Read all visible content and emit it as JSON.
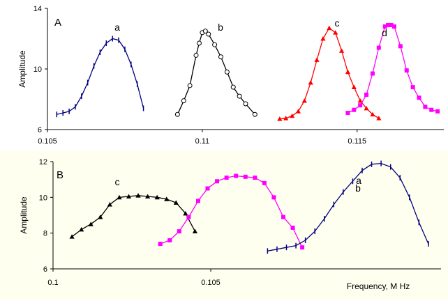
{
  "colors": {
    "panel_a_bg": "#ffffff",
    "panel_b_bg": "#fffff0",
    "a": "#000080",
    "b": "#000000",
    "c": "#ff0000",
    "d": "#ff00ff"
  },
  "chart_data": [
    {
      "type": "line",
      "panel_label": "A",
      "ylabel": "Amplitude",
      "xlabel": "",
      "xlim": [
        0.105,
        0.1178
      ],
      "ylim": [
        6,
        14
      ],
      "xticks": [
        "0.105",
        "0.11",
        "0.115"
      ],
      "yticks": [
        "6",
        "10",
        "14"
      ],
      "series": [
        {
          "name": "a",
          "color": "#000080",
          "marker": "dash",
          "x": [
            0.1053,
            0.1055,
            0.1057,
            0.1059,
            0.1061,
            0.1063,
            0.1065,
            0.1067,
            0.1069,
            0.1071,
            0.1073,
            0.1075,
            0.1077,
            0.1079,
            0.1081
          ],
          "y": [
            7.0,
            7.1,
            7.2,
            7.5,
            8.2,
            9.1,
            10.2,
            11.1,
            11.7,
            12.0,
            11.9,
            11.3,
            10.3,
            9.0,
            7.4
          ]
        },
        {
          "name": "b",
          "color": "#000000",
          "marker": "circle",
          "x": [
            0.1092,
            0.1094,
            0.1096,
            0.1098,
            0.1099,
            0.11,
            0.1101,
            0.1102,
            0.1104,
            0.1106,
            0.1108,
            0.111,
            0.1112,
            0.1114,
            0.1117
          ],
          "y": [
            7.0,
            7.9,
            8.9,
            10.9,
            11.7,
            12.4,
            12.5,
            12.3,
            11.6,
            10.8,
            9.8,
            8.8,
            8.2,
            7.7,
            7.0
          ]
        },
        {
          "name": "c",
          "color": "#ff0000",
          "marker": "triangle",
          "x": [
            0.1125,
            0.1127,
            0.1129,
            0.1131,
            0.1133,
            0.1135,
            0.1137,
            0.1139,
            0.1141,
            0.1143,
            0.1145,
            0.1147,
            0.1149,
            0.1151,
            0.1153,
            0.1155,
            0.1157
          ],
          "y": [
            6.7,
            6.75,
            6.9,
            7.2,
            7.9,
            9.1,
            10.6,
            12.0,
            12.7,
            12.4,
            11.2,
            9.8,
            8.8,
            7.9,
            7.4,
            7.0,
            6.75
          ]
        },
        {
          "name": "d",
          "color": "#ff00ff",
          "marker": "square",
          "x": [
            0.1147,
            0.1149,
            0.1151,
            0.1153,
            0.1155,
            0.1157,
            0.1159,
            0.116,
            0.1161,
            0.1162,
            0.1164,
            0.1166,
            0.1168,
            0.117,
            0.1172,
            0.1174,
            0.1176
          ],
          "y": [
            7.1,
            7.3,
            7.6,
            8.3,
            9.7,
            11.4,
            12.8,
            12.9,
            12.9,
            12.8,
            11.5,
            9.9,
            8.8,
            8.1,
            7.5,
            7.3,
            7.2
          ]
        }
      ]
    },
    {
      "type": "line",
      "panel_label": "B",
      "ylabel": "Amplitude",
      "xlabel": "Frequency,  M Hz",
      "xlim": [
        0.1,
        0.1123
      ],
      "ylim": [
        6,
        12
      ],
      "xticks": [
        "0.1",
        "0.105"
      ],
      "yticks": [
        "6",
        "8",
        "10",
        "12"
      ],
      "series": [
        {
          "name": "c",
          "color": "#000000",
          "marker": "triangle",
          "x": [
            0.1006,
            0.1009,
            0.1012,
            0.1015,
            0.1018,
            0.1021,
            0.1024,
            0.1027,
            0.103,
            0.1033,
            0.1036,
            0.1039,
            0.1042,
            0.1045
          ],
          "y": [
            7.8,
            8.2,
            8.5,
            8.9,
            9.6,
            10.0,
            10.05,
            10.1,
            10.05,
            10.0,
            9.9,
            9.7,
            9.1,
            8.1
          ]
        },
        {
          "name": "b",
          "color": "#ff00ff",
          "marker": "square",
          "x": [
            0.1034,
            0.1037,
            0.104,
            0.1043,
            0.1046,
            0.1049,
            0.1052,
            0.1055,
            0.1058,
            0.1061,
            0.1064,
            0.1067,
            0.107,
            0.1073,
            0.1076,
            0.1079
          ],
          "y": [
            7.4,
            7.6,
            8.1,
            8.9,
            9.8,
            10.5,
            10.9,
            11.1,
            11.2,
            11.15,
            11.1,
            10.8,
            10.0,
            8.9,
            8.3,
            7.2
          ]
        },
        {
          "name": "a",
          "color": "#000080",
          "marker": "dash",
          "x": [
            0.1068,
            0.1071,
            0.1074,
            0.1077,
            0.108,
            0.1083,
            0.1086,
            0.1089,
            0.1092,
            0.1095,
            0.1098,
            0.1101,
            0.1104,
            0.1107,
            0.111,
            0.1113,
            0.1116,
            0.1119
          ],
          "y": [
            7.0,
            7.1,
            7.2,
            7.3,
            7.6,
            8.1,
            8.8,
            9.6,
            10.3,
            10.9,
            11.5,
            11.85,
            11.9,
            11.7,
            11.1,
            10.0,
            8.6,
            7.4
          ]
        }
      ]
    }
  ]
}
